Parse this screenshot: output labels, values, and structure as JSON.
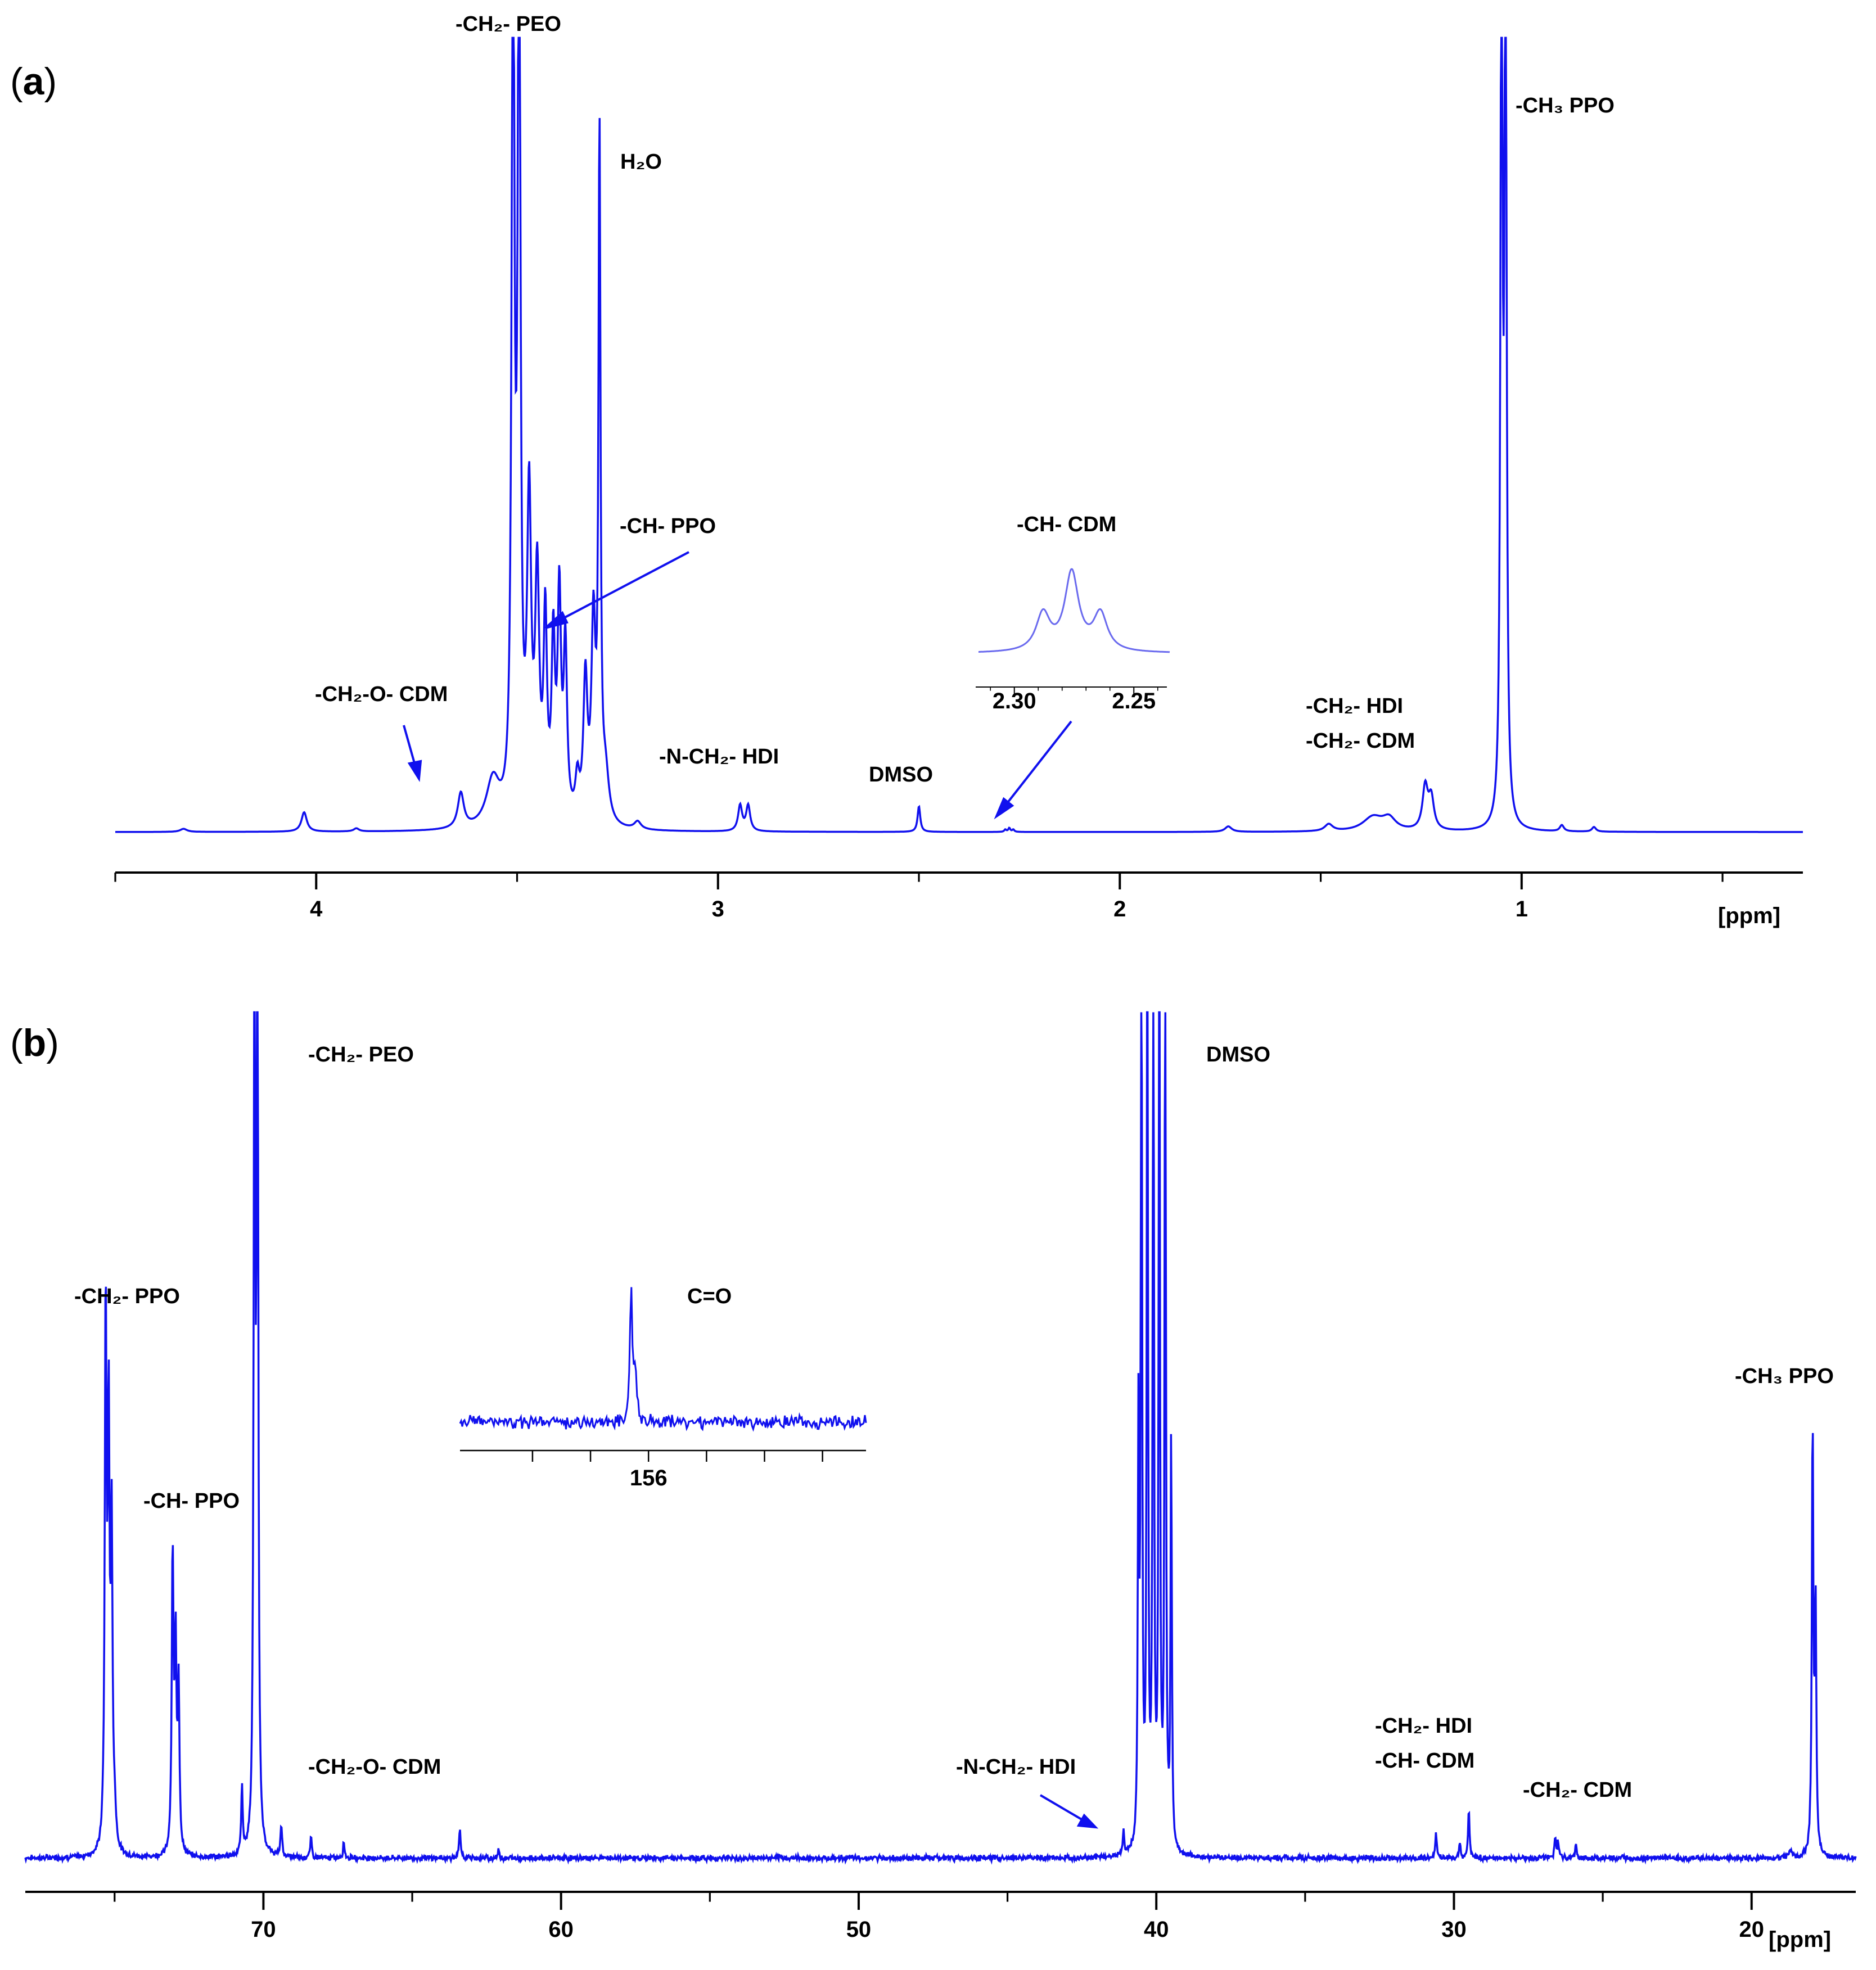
{
  "chart_data": [
    {
      "panel_label": "(a)",
      "type": "line",
      "title": "",
      "xlabel": "[ppm]",
      "ylabel": "",
      "x_reversed": true,
      "xlim": [
        4.5,
        0.3
      ],
      "ticks": [
        4,
        3,
        2,
        1
      ],
      "tick_labels": [
        "4",
        "3",
        "2",
        "1"
      ],
      "peaks": [
        {
          "x": 4.33,
          "h": 0.004,
          "w": 0.01
        },
        {
          "x": 4.03,
          "h": 0.025,
          "w": 0.008
        },
        {
          "x": 3.9,
          "h": 0.004,
          "w": 0.008
        },
        {
          "x": 3.64,
          "h": 0.045,
          "w": 0.009
        },
        {
          "x": 3.56,
          "h": 0.06,
          "w": 0.02
        },
        {
          "x": 3.51,
          "h": 1.2,
          "w": 0.004
        },
        {
          "x": 3.495,
          "h": 1.2,
          "w": 0.004
        },
        {
          "x": 3.47,
          "h": 0.4,
          "w": 0.006
        },
        {
          "x": 3.45,
          "h": 0.3,
          "w": 0.006
        },
        {
          "x": 3.43,
          "h": 0.25,
          "w": 0.005
        },
        {
          "x": 3.41,
          "h": 0.22,
          "w": 0.005
        },
        {
          "x": 3.395,
          "h": 0.28,
          "w": 0.005
        },
        {
          "x": 3.38,
          "h": 0.22,
          "w": 0.005
        },
        {
          "x": 3.35,
          "h": 0.05,
          "w": 0.006
        },
        {
          "x": 3.33,
          "h": 0.18,
          "w": 0.006
        },
        {
          "x": 3.31,
          "h": 0.25,
          "w": 0.006
        },
        {
          "x": 3.295,
          "h": 0.87,
          "w": 0.003
        },
        {
          "x": 3.28,
          "h": 0.06,
          "w": 0.01
        },
        {
          "x": 3.2,
          "h": 0.01,
          "w": 0.01
        },
        {
          "x": 2.945,
          "h": 0.033,
          "w": 0.006
        },
        {
          "x": 2.925,
          "h": 0.033,
          "w": 0.006
        },
        {
          "x": 2.5,
          "h": 0.033,
          "w": 0.004
        },
        {
          "x": 2.285,
          "h": 0.003,
          "w": 0.003
        },
        {
          "x": 2.275,
          "h": 0.005,
          "w": 0.003
        },
        {
          "x": 2.265,
          "h": 0.003,
          "w": 0.003
        },
        {
          "x": 1.73,
          "h": 0.007,
          "w": 0.01
        },
        {
          "x": 1.48,
          "h": 0.009,
          "w": 0.012
        },
        {
          "x": 1.37,
          "h": 0.018,
          "w": 0.03
        },
        {
          "x": 1.33,
          "h": 0.015,
          "w": 0.02
        },
        {
          "x": 1.24,
          "h": 0.055,
          "w": 0.008
        },
        {
          "x": 1.225,
          "h": 0.04,
          "w": 0.008
        },
        {
          "x": 1.05,
          "h": 1.2,
          "w": 0.003
        },
        {
          "x": 1.04,
          "h": 1.2,
          "w": 0.003
        },
        {
          "x": 0.9,
          "h": 0.008,
          "w": 0.006
        },
        {
          "x": 0.82,
          "h": 0.006,
          "w": 0.006
        }
      ],
      "annotations": [
        {
          "text": "-CH₂- PEO"
        },
        {
          "text": "H₂O"
        },
        {
          "text": "-CH- PPO"
        },
        {
          "text": "-CH- CDM"
        },
        {
          "text": "-CH₂-O- CDM"
        },
        {
          "text": "-N-CH₂- HDI"
        },
        {
          "text": "DMSO"
        },
        {
          "text": "-CH₂- HDI"
        },
        {
          "text": "-CH₂- CDM"
        },
        {
          "text": "-CH₃ PPO"
        }
      ],
      "inset": {
        "xlim": [
          2.315,
          2.235
        ],
        "ticks": [
          2.3,
          2.25
        ],
        "tick_labels": [
          "2.30",
          "2.25"
        ],
        "peaks": [
          {
            "x": 2.288,
            "h": 0.45,
            "w": 0.0035
          },
          {
            "x": 2.276,
            "h": 0.95,
            "w": 0.0035
          },
          {
            "x": 2.264,
            "h": 0.45,
            "w": 0.0035
          }
        ]
      }
    },
    {
      "panel_label": "(b)",
      "type": "line",
      "title": "",
      "xlabel": "[ppm]",
      "ylabel": "",
      "x_reversed": true,
      "xlim": [
        78.0,
        16.5
      ],
      "ticks": [
        70,
        60,
        50,
        40,
        30,
        20
      ],
      "tick_labels": [
        "70",
        "60",
        "50",
        "40",
        "30",
        "20"
      ],
      "peaks": [
        {
          "x": 75.3,
          "h": 0.66,
          "w": 0.035
        },
        {
          "x": 75.2,
          "h": 0.5,
          "w": 0.035
        },
        {
          "x": 75.1,
          "h": 0.38,
          "w": 0.035
        },
        {
          "x": 75.0,
          "h": 0.04,
          "w": 0.05
        },
        {
          "x": 73.05,
          "h": 0.36,
          "w": 0.035
        },
        {
          "x": 72.95,
          "h": 0.24,
          "w": 0.035
        },
        {
          "x": 72.85,
          "h": 0.2,
          "w": 0.035
        },
        {
          "x": 70.72,
          "h": 0.08,
          "w": 0.03
        },
        {
          "x": 70.3,
          "h": 1.2,
          "w": 0.03
        },
        {
          "x": 70.2,
          "h": 1.2,
          "w": 0.03
        },
        {
          "x": 69.4,
          "h": 0.04,
          "w": 0.03
        },
        {
          "x": 68.4,
          "h": 0.025,
          "w": 0.03
        },
        {
          "x": 67.3,
          "h": 0.02,
          "w": 0.03
        },
        {
          "x": 63.4,
          "h": 0.035,
          "w": 0.03
        },
        {
          "x": 62.1,
          "h": 0.01,
          "w": 0.03
        },
        {
          "x": 41.1,
          "h": 0.028,
          "w": 0.03
        },
        {
          "x": 40.6,
          "h": 0.5,
          "w": 0.025
        },
        {
          "x": 40.5,
          "h": 1.2,
          "w": 0.025
        },
        {
          "x": 40.3,
          "h": 1.2,
          "w": 0.025
        },
        {
          "x": 40.1,
          "h": 1.2,
          "w": 0.025
        },
        {
          "x": 39.9,
          "h": 1.2,
          "w": 0.025
        },
        {
          "x": 39.7,
          "h": 1.2,
          "w": 0.025
        },
        {
          "x": 39.5,
          "h": 0.5,
          "w": 0.025
        },
        {
          "x": 30.6,
          "h": 0.03,
          "w": 0.03
        },
        {
          "x": 29.8,
          "h": 0.02,
          "w": 0.03
        },
        {
          "x": 29.5,
          "h": 0.06,
          "w": 0.03
        },
        {
          "x": 26.6,
          "h": 0.025,
          "w": 0.03
        },
        {
          "x": 26.5,
          "h": 0.02,
          "w": 0.03
        },
        {
          "x": 25.9,
          "h": 0.018,
          "w": 0.03
        },
        {
          "x": 18.7,
          "h": 0.01,
          "w": 0.05
        },
        {
          "x": 17.95,
          "h": 0.52,
          "w": 0.03
        },
        {
          "x": 17.85,
          "h": 0.3,
          "w": 0.03
        }
      ],
      "annotations": [
        {
          "text": "-CH₂- PEO"
        },
        {
          "text": "DMSO"
        },
        {
          "text": "C=O"
        },
        {
          "text": "-CH₂- PPO"
        },
        {
          "text": "-CH- PPO"
        },
        {
          "text": "-CH₂-O- CDM"
        },
        {
          "text": "-N-CH₂- HDI"
        },
        {
          "text": "-CH₂- HDI"
        },
        {
          "text": "-CH- CDM"
        },
        {
          "text": "-CH₂- CDM"
        },
        {
          "text": "-CH₃ PPO"
        }
      ],
      "inset": {
        "xlim": [
          162.5,
          148.5
        ],
        "ticks": [
          160,
          158,
          156,
          154,
          152,
          150
        ],
        "tick_labels": [
          "",
          "",
          "156",
          "",
          "",
          ""
        ],
        "noise": 0.05,
        "peaks": [
          {
            "x": 156.6,
            "h": 0.85,
            "w": 0.05
          },
          {
            "x": 156.45,
            "h": 0.3,
            "w": 0.05
          }
        ]
      }
    }
  ],
  "colors": {
    "trace": "#1010ee",
    "axis": "#000000",
    "inset_trace": "#6a6aee"
  }
}
